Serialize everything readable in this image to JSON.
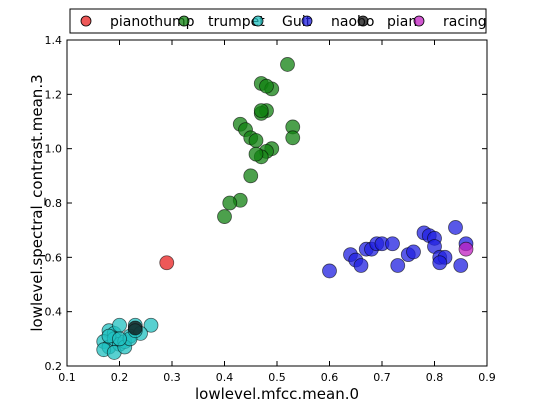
{
  "chart_data": {
    "type": "scatter",
    "title": "",
    "xlabel": "lowlevel.mfcc.mean.0",
    "ylabel": "lowlevel.spectral_contrast.mean.3",
    "xlim": [
      0.1,
      0.9
    ],
    "ylim": [
      0.2,
      1.4
    ],
    "xticks": [
      "0.1",
      "0.2",
      "0.3",
      "0.4",
      "0.5",
      "0.6",
      "0.7",
      "0.8",
      "0.9"
    ],
    "yticks": [
      "0.2",
      "0.4",
      "0.6",
      "0.8",
      "1.0",
      "1.2",
      "1.4"
    ],
    "grid": false,
    "legend_position": "top",
    "series": [
      {
        "name": "pianothump",
        "color": "#e82020",
        "points": [
          [
            0.29,
            0.58
          ]
        ]
      },
      {
        "name": "trumpet",
        "color": "#108010",
        "points": [
          [
            0.52,
            1.31
          ],
          [
            0.47,
            1.24
          ],
          [
            0.49,
            1.22
          ],
          [
            0.48,
            1.23
          ],
          [
            0.48,
            1.14
          ],
          [
            0.47,
            1.13
          ],
          [
            0.47,
            1.14
          ],
          [
            0.43,
            1.09
          ],
          [
            0.44,
            1.07
          ],
          [
            0.53,
            1.08
          ],
          [
            0.53,
            1.04
          ],
          [
            0.45,
            1.04
          ],
          [
            0.46,
            1.03
          ],
          [
            0.49,
            1.0
          ],
          [
            0.48,
            0.99
          ],
          [
            0.47,
            0.97
          ],
          [
            0.46,
            0.98
          ],
          [
            0.45,
            0.9
          ],
          [
            0.43,
            0.81
          ],
          [
            0.41,
            0.8
          ],
          [
            0.4,
            0.75
          ]
        ]
      },
      {
        "name": "Guit",
        "color": "#20c0c0",
        "points": [
          [
            0.18,
            0.33
          ],
          [
            0.19,
            0.32
          ],
          [
            0.2,
            0.35
          ],
          [
            0.23,
            0.35
          ],
          [
            0.26,
            0.35
          ],
          [
            0.17,
            0.29
          ],
          [
            0.18,
            0.27
          ],
          [
            0.19,
            0.3
          ],
          [
            0.2,
            0.28
          ],
          [
            0.21,
            0.29
          ],
          [
            0.22,
            0.31
          ],
          [
            0.24,
            0.32
          ],
          [
            0.17,
            0.26
          ],
          [
            0.19,
            0.25
          ],
          [
            0.21,
            0.27
          ],
          [
            0.22,
            0.3
          ],
          [
            0.18,
            0.31
          ],
          [
            0.2,
            0.3
          ],
          [
            0.23,
            0.33
          ]
        ]
      },
      {
        "name": "naobo",
        "color": "#2020e0",
        "points": [
          [
            0.6,
            0.55
          ],
          [
            0.64,
            0.61
          ],
          [
            0.65,
            0.59
          ],
          [
            0.66,
            0.57
          ],
          [
            0.67,
            0.63
          ],
          [
            0.68,
            0.63
          ],
          [
            0.69,
            0.65
          ],
          [
            0.7,
            0.65
          ],
          [
            0.72,
            0.65
          ],
          [
            0.73,
            0.57
          ],
          [
            0.75,
            0.61
          ],
          [
            0.76,
            0.62
          ],
          [
            0.78,
            0.69
          ],
          [
            0.79,
            0.68
          ],
          [
            0.8,
            0.67
          ],
          [
            0.8,
            0.64
          ],
          [
            0.81,
            0.6
          ],
          [
            0.82,
            0.6
          ],
          [
            0.84,
            0.71
          ],
          [
            0.86,
            0.65
          ],
          [
            0.85,
            0.57
          ],
          [
            0.81,
            0.58
          ]
        ]
      },
      {
        "name": "pian",
        "color": "#101010",
        "points": [
          [
            0.23,
            0.34
          ]
        ]
      },
      {
        "name": "racing",
        "color": "#c020c0",
        "points": [
          [
            0.86,
            0.63
          ]
        ]
      }
    ]
  }
}
